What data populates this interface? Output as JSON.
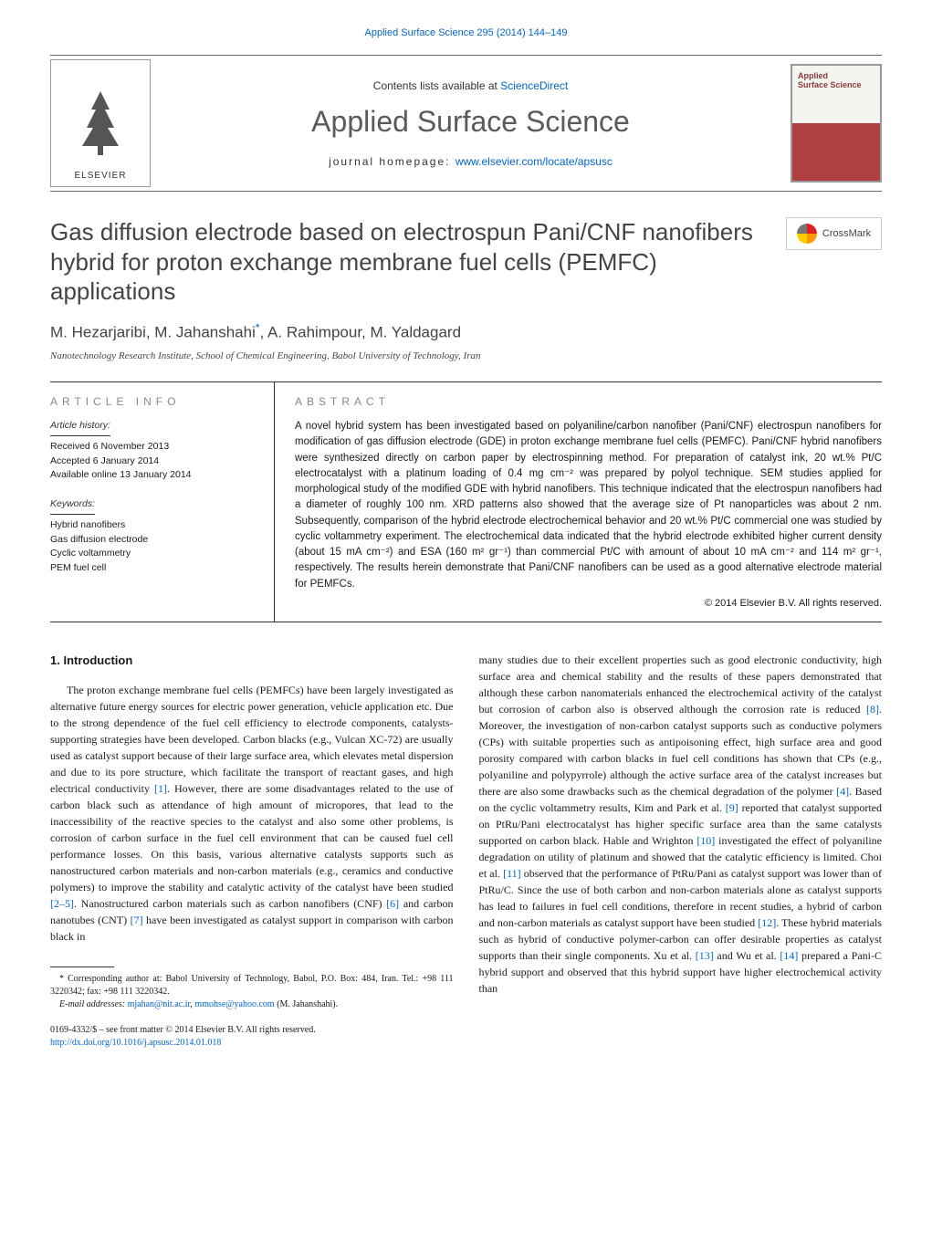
{
  "header": {
    "citation": "Applied Surface Science 295 (2014) 144–149",
    "contents_prefix": "Contents lists available at ",
    "sciencedirect": "ScienceDirect",
    "journal_name": "Applied Surface Science",
    "homepage_prefix": "journal homepage: ",
    "homepage_url": "www.elsevier.com/locate/apsusc",
    "publisher": "ELSEVIER",
    "cover_title": "Applied\nSurface Science"
  },
  "crossmark": "CrossMark",
  "title": "Gas diffusion electrode based on electrospun Pani/CNF nanofibers hybrid for proton exchange membrane fuel cells (PEMFC) applications",
  "authors": "M. Hezarjaribi, M. Jahanshahi",
  "authors_suffix": ", A. Rahimpour, M. Yaldagard",
  "corr_marker": "*",
  "affiliation": "Nanotechnology Research Institute, School of Chemical Engineering, Babol University of Technology, Iran",
  "info": {
    "heading": "ARTICLE INFO",
    "history_label": "Article history:",
    "received": "Received 6 November 2013",
    "accepted": "Accepted 6 January 2014",
    "online": "Available online 13 January 2014",
    "keywords_label": "Keywords:",
    "keywords": [
      "Hybrid nanofibers",
      "Gas diffusion electrode",
      "Cyclic voltammetry",
      "PEM fuel cell"
    ]
  },
  "abstract": {
    "heading": "ABSTRACT",
    "text": "A novel hybrid system has been investigated based on polyaniline/carbon nanofiber (Pani/CNF) electrospun nanofibers for modification of gas diffusion electrode (GDE) in proton exchange membrane fuel cells (PEMFC). Pani/CNF hybrid nanofibers were synthesized directly on carbon paper by electrospinning method. For preparation of catalyst ink, 20 wt.% Pt/C electrocatalyst with a platinum loading of 0.4 mg cm⁻² was prepared by polyol technique. SEM studies applied for morphological study of the modified GDE with hybrid nanofibers. This technique indicated that the electrospun nanofibers had a diameter of roughly 100 nm. XRD patterns also showed that the average size of Pt nanoparticles was about 2 nm. Subsequently, comparison of the hybrid electrode electrochemical behavior and 20 wt.% Pt/C commercial one was studied by cyclic voltammetry experiment. The electrochemical data indicated that the hybrid electrode exhibited higher current density (about 15 mA cm⁻²) and ESA (160 m² gr⁻¹) than commercial Pt/C with amount of about 10 mA cm⁻² and 114 m² gr⁻¹, respectively. The results herein demonstrate that Pani/CNF nanofibers can be used as a good alternative electrode material for PEMFCs.",
    "copyright": "© 2014 Elsevier B.V. All rights reserved."
  },
  "body": {
    "heading": "1. Introduction",
    "col1": "The proton exchange membrane fuel cells (PEMFCs) have been largely investigated as alternative future energy sources for electric power generation, vehicle application etc. Due to the strong dependence of the fuel cell efficiency to electrode components, catalysts-supporting strategies have been developed. Carbon blacks (e.g., Vulcan XC-72) are usually used as catalyst support because of their large surface area, which elevates metal dispersion and due to its pore structure, which facilitate the transport of reactant gases, and high electrical conductivity [1]. However, there are some disadvantages related to the use of carbon black such as attendance of high amount of micropores, that lead to the inaccessibility of the reactive species to the catalyst and also some other problems, is corrosion of carbon surface in the fuel cell environment that can be caused fuel cell performance losses. On this basis, various alternative catalysts supports such as nanostructured carbon materials and non-carbon materials (e.g., ceramics and conductive polymers) to improve the stability and catalytic activity of the catalyst have been studied [2–5]. Nanostructured carbon materials such as carbon nanofibers (CNF) [6] and carbon nanotubes (CNT) [7] have been investigated as catalyst support in comparison with carbon black in",
    "col2": "many studies due to their excellent properties such as good electronic conductivity, high surface area and chemical stability and the results of these papers demonstrated that although these carbon nanomaterials enhanced the electrochemical activity of the catalyst but corrosion of carbon also is observed although the corrosion rate is reduced [8]. Moreover, the investigation of non-carbon catalyst supports such as conductive polymers (CPs) with suitable properties such as antipoisoning effect, high surface area and good porosity compared with carbon blacks in fuel cell conditions has shown that CPs (e.g., polyaniline and polypyrrole) although the active surface area of the catalyst increases but there are also some drawbacks such as the chemical degradation of the polymer [4]. Based on the cyclic voltammetry results, Kim and Park et al. [9] reported that catalyst supported on PtRu/Pani electrocatalyst has higher specific surface area than the same catalysts supported on carbon black. Hable and Wrighton [10] investigated the effect of polyaniline degradation on utility of platinum and showed that the catalytic efficiency is limited. Choi et al. [11] observed that the performance of PtRu/Pani as catalyst support was lower than of PtRu/C. Since the use of both carbon and non-carbon materials alone as catalyst supports has lead to failures in fuel cell conditions, therefore in recent studies, a hybrid of carbon and non-carbon materials as catalyst support have been studied [12]. These hybrid materials such as hybrid of conductive polymer-carbon can offer desirable properties as catalyst supports than their single components. Xu et al. [13] and Wu et al. [14] prepared a Pani-C hybrid support and observed that this hybrid support have higher electrochemical activity than"
  },
  "footnote": {
    "corr": "* Corresponding author at: Babol University of Technology, Babol, P.O. Box: 484, Iran. Tel.: +98 111 3220342; fax: +98 111 3220342.",
    "email_label": "E-mail addresses: ",
    "email1": "mjahan@nit.ac.ir",
    "email2": "mmohse@yahoo.com",
    "email_suffix": " (M. Jahanshahi)."
  },
  "bottom": {
    "issn": "0169-4332/$ – see front matter © 2014 Elsevier B.V. All rights reserved.",
    "doi": "http://dx.doi.org/10.1016/j.apsusc.2014.01.018"
  },
  "colors": {
    "link": "#0066cc",
    "text": "#1a1a1a",
    "heading_gray": "#888888",
    "rule": "#333333"
  }
}
